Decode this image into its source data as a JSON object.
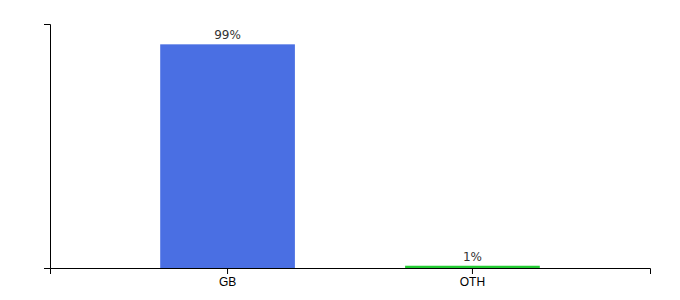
{
  "chart_data": {
    "type": "bar",
    "categories": [
      "GB",
      "OTH"
    ],
    "values": [
      99,
      1
    ],
    "value_labels": [
      "99%",
      "1%"
    ],
    "colors": [
      "#4a6fe3",
      "#22cc33"
    ],
    "ylim": [
      0,
      108
    ],
    "data_labels": true,
    "tick_labels": "x",
    "grid": false
  }
}
